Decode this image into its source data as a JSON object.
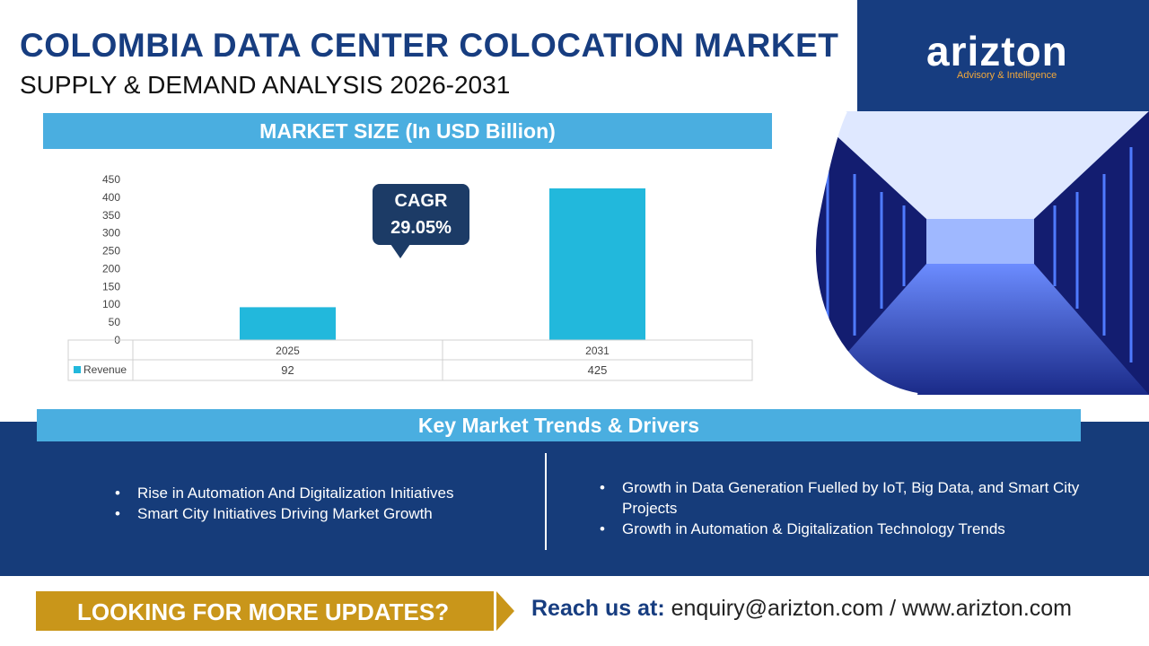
{
  "header": {
    "title": "COLOMBIA DATA CENTER COLOCATION MARKET",
    "subtitle": "SUPPLY & DEMAND ANALYSIS 2026-2031"
  },
  "brand": {
    "name": "arizton",
    "tagline": "Advisory & Intelligence",
    "color_primary": "#173d80",
    "color_accent": "#f2a83a"
  },
  "market": {
    "header": "MARKET SIZE (In USD Billion)",
    "cagr_label": "CAGR",
    "cagr_value": "29.05%"
  },
  "chart_data": {
    "type": "bar",
    "categories": [
      "2025",
      "2031"
    ],
    "series": [
      {
        "name": "Revenue",
        "values": [
          92,
          425
        ],
        "color": "#22b8dc"
      }
    ],
    "ylim": [
      0,
      450
    ],
    "yticks": [
      0,
      50,
      100,
      150,
      200,
      250,
      300,
      350,
      400,
      450
    ],
    "data_table": true,
    "grid": false
  },
  "trends": {
    "header": "Key Market Trends & Drivers",
    "left": [
      "Rise in Automation And Digitalization Initiatives",
      "Smart City Initiatives Driving Market Growth"
    ],
    "right": [
      "Growth in Data Generation Fuelled by IoT, Big Data, and Smart City Projects",
      "Growth in Automation & Digitalization Technology Trends"
    ]
  },
  "footer": {
    "cta": "LOOKING FOR MORE UPDATES?",
    "reach_label": "Reach us at:",
    "reach_value": "enquiry@arizton.com / www.arizton.com"
  }
}
